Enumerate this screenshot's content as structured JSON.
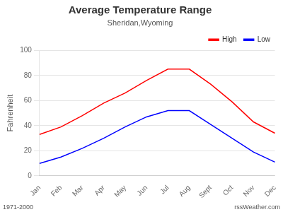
{
  "chart_data": {
    "type": "line",
    "title": "Average Temperature Range",
    "subtitle": "Sheridan,Wyoming",
    "ylabel": "Fahrenheit",
    "categories": [
      "Jan",
      "Feb",
      "Mar",
      "Apr",
      "May",
      "Jun",
      "Jul",
      "Aug",
      "Sept",
      "Oct",
      "Nov",
      "Dec"
    ],
    "series": [
      {
        "name": "High",
        "color": "#ff0000",
        "values": [
          33,
          39,
          48,
          58,
          66,
          76,
          85,
          85,
          73,
          59,
          43,
          34
        ]
      },
      {
        "name": "Low",
        "color": "#0000ff",
        "values": [
          10,
          15,
          22,
          30,
          39,
          47,
          52,
          52,
          41,
          30,
          19,
          11
        ]
      }
    ],
    "ylim": [
      0,
      100
    ],
    "yticks": [
      0,
      20,
      40,
      60,
      80,
      100
    ],
    "grid": "y",
    "legend": "upper right",
    "annotations": [
      "1971-2000",
      "rssWeather.com"
    ]
  }
}
